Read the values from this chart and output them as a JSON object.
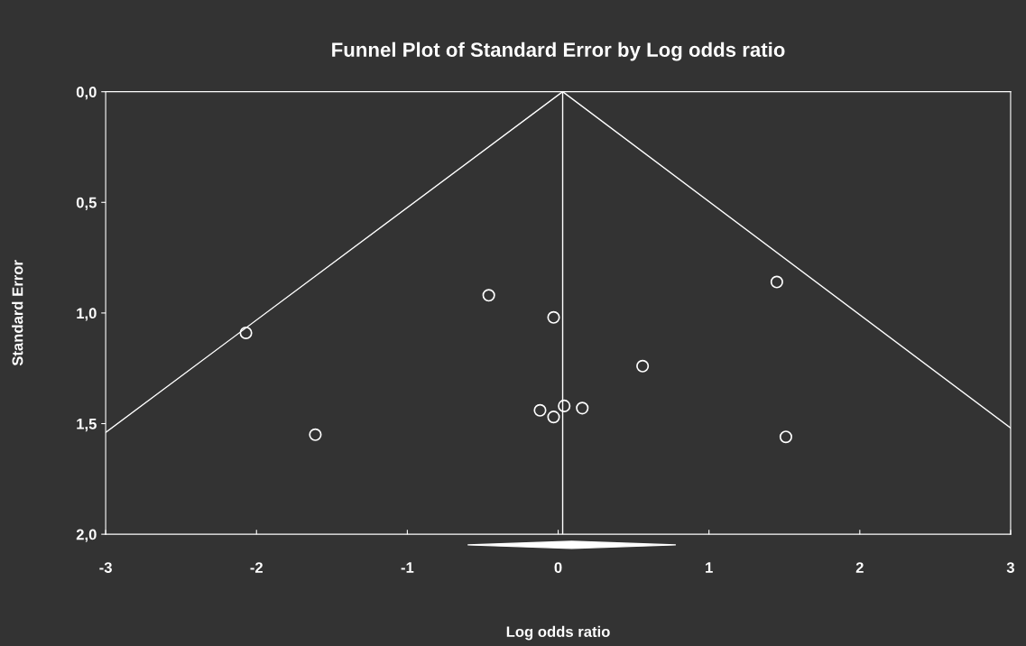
{
  "chart_data": {
    "type": "scatter",
    "title": "Funnel Plot of Standard Error by Log odds ratio",
    "xlabel": "Log odds ratio",
    "ylabel": "Standard Error",
    "x": [
      -2.07,
      -1.61,
      -0.46,
      -0.03,
      -0.12,
      -0.03,
      0.04,
      0.16,
      0.56,
      1.45,
      1.51
    ],
    "series": [
      {
        "color": "#ffffff",
        "marker": "circle",
        "values": [
          1.09,
          1.55,
          0.92,
          1.02,
          1.44,
          1.47,
          1.42,
          1.43,
          1.24,
          0.86,
          1.56
        ]
      },
      {
        "type": "line",
        "color": "#ffffff",
        "marker": "none",
        "x": [
          -3,
          0.03,
          3
        ],
        "values": [
          1.54,
          0,
          1.52
        ]
      }
    ],
    "ref_lines": [
      {
        "axis": "x",
        "value": 0.03,
        "color": "#ffffff"
      }
    ],
    "xlim": [
      -3,
      3
    ],
    "xticks": [
      -3,
      -2,
      -1,
      0,
      1,
      2,
      3
    ],
    "ylim": [
      2.0,
      0.0
    ],
    "yticks": [
      {
        "value": 0,
        "label": "0,0"
      },
      {
        "value": 0.5,
        "label": "0,5"
      },
      {
        "value": 1.0,
        "label": "1,0"
      },
      {
        "value": 1.5,
        "label": "1,5"
      },
      {
        "value": 2.0,
        "label": "2,0"
      }
    ],
    "grid": false,
    "legend": false
  }
}
